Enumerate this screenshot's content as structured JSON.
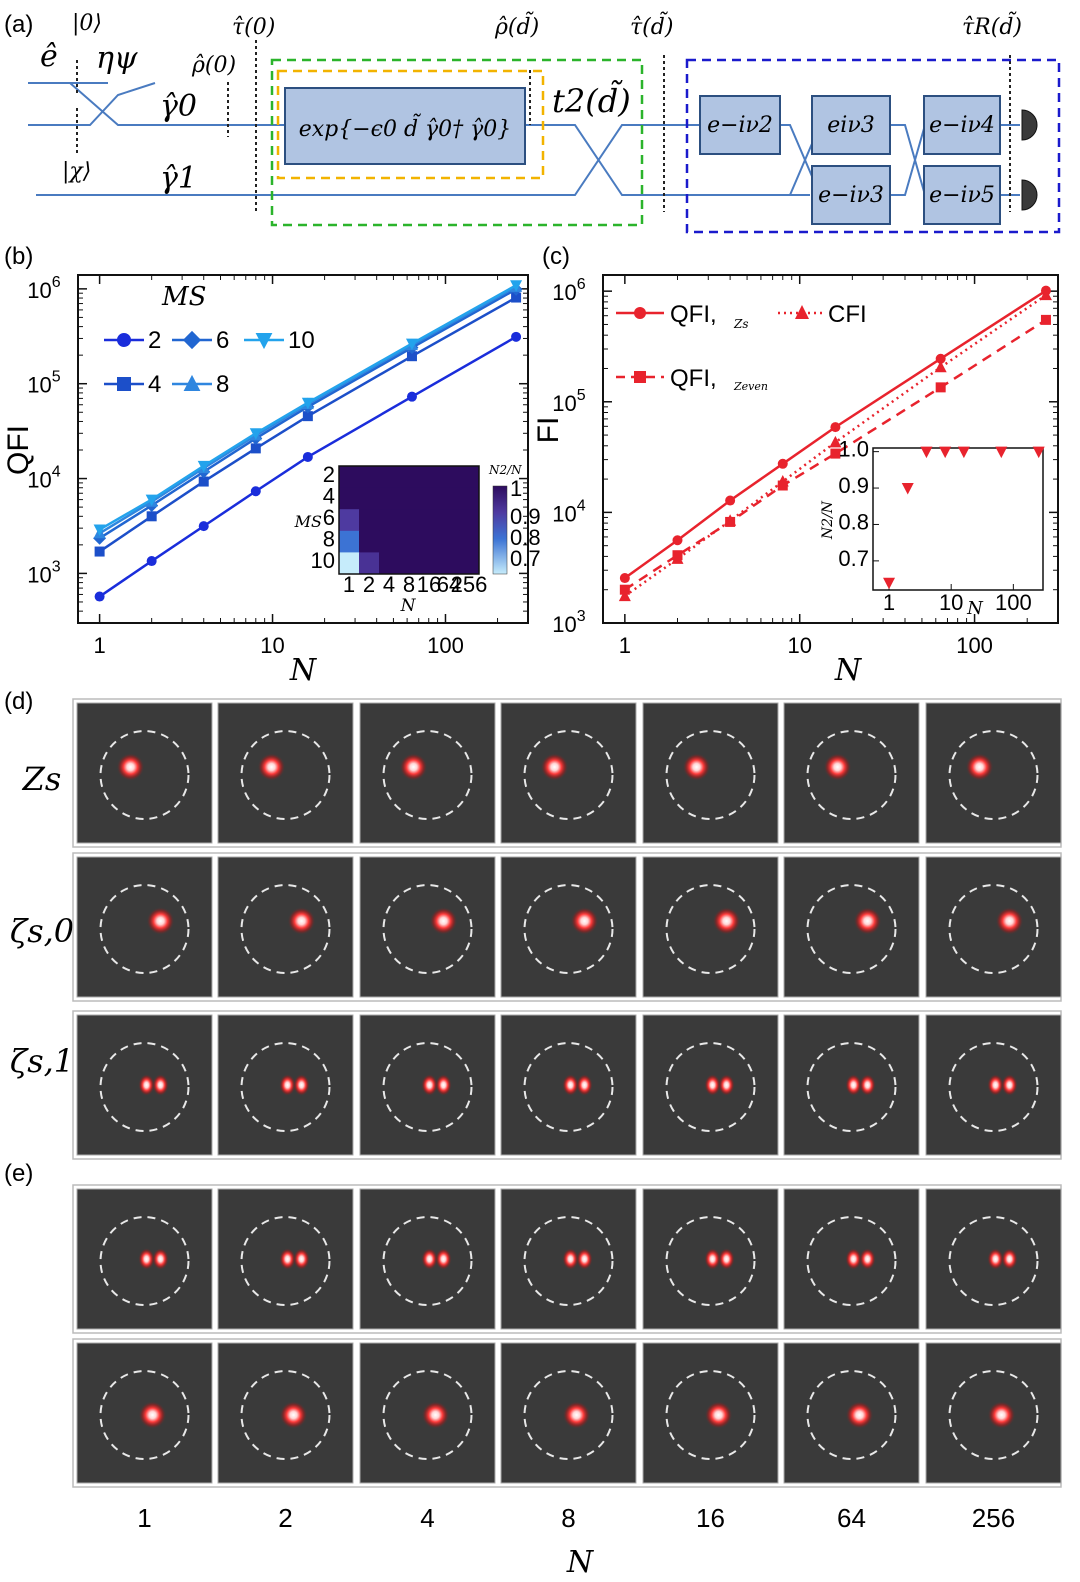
{
  "panels": {
    "a": "(a)",
    "b": "(b)",
    "c": "(c)",
    "d": "(d)",
    "e": "(e)"
  },
  "circuit": {
    "ket0": "|0⟩",
    "ketchi": "|χ⟩",
    "e_hat": "ê",
    "eta": "ηψ",
    "gamma0": "γ̂0",
    "gamma1": "γ̂1",
    "rho0": "ρ̂(0)",
    "tau0": "τ̂(0)",
    "rhod": "ρ̂(d̃)",
    "taud": "τ̂(d̃)",
    "taurd": "τ̂R(d̃)",
    "t2": "t2(d̃)",
    "exp_box": "exp{−ϵ0 d̃ γ̂0† γ̂0}",
    "phase_boxes": [
      "e−iν2",
      "eiν3",
      "e−iν3",
      "e−iν4",
      "e−iν5"
    ],
    "colors": {
      "wire": "#4a7bc0",
      "box_fill": "#b0c4e2",
      "box_stroke": "#2c4f80",
      "green": "#2bb42b",
      "orange": "#f2b300",
      "blue": "#1a1acc",
      "detector": "#3a3a3a"
    }
  },
  "chart_data": [
    {
      "id": "b",
      "type": "line",
      "ylabel": "QFI",
      "xlabel": "N",
      "xscale": "log",
      "yscale": "log",
      "xlim": [
        0.75,
        300
      ],
      "ylim": [
        300,
        1400000
      ],
      "xticks": [
        "1",
        "10",
        "100"
      ],
      "yticks": [
        "10^3",
        "10^4",
        "10^5",
        "10^6"
      ],
      "legend_title": "MS",
      "legend_placement": "top-left",
      "x": [
        1,
        2,
        4,
        8,
        16,
        64,
        256
      ],
      "series": [
        {
          "name": "2",
          "marker": "circle",
          "color": "#1a2ddb",
          "values": [
            570,
            1350,
            3150,
            7350,
            16900,
            73000,
            312000
          ]
        },
        {
          "name": "4",
          "marker": "square",
          "color": "#1c4fc9",
          "values": [
            1700,
            4000,
            9300,
            20800,
            45500,
            195000,
            810000
          ]
        },
        {
          "name": "6",
          "marker": "diamond",
          "color": "#2166d1",
          "values": [
            2350,
            5200,
            11800,
            26500,
            57000,
            240000,
            990000
          ]
        },
        {
          "name": "8",
          "marker": "triangle-up",
          "color": "#2f86df",
          "values": [
            2650,
            5700,
            12900,
            28500,
            61000,
            255000,
            1050000
          ]
        },
        {
          "name": "10",
          "marker": "triangle-down",
          "color": "#23a3ec",
          "values": [
            2900,
            6000,
            13600,
            30000,
            63000,
            265000,
            1090000
          ]
        }
      ],
      "inset": {
        "type": "heatmap",
        "xlabel": "N",
        "ylabel": "MS",
        "colorbar_label": "N2/N",
        "colorbar_ticks": [
          "1",
          "0.9",
          "0.8",
          "0.7"
        ],
        "x_categories": [
          "1",
          "2",
          "4",
          "8",
          "16",
          "64",
          "256"
        ],
        "y_categories": [
          "2",
          "4",
          "6",
          "8",
          "10"
        ],
        "values": [
          [
            1,
            1,
            1,
            1,
            1,
            1,
            1
          ],
          [
            1,
            1,
            1,
            1,
            1,
            1,
            1
          ],
          [
            0.88,
            1,
            1,
            1,
            1,
            1,
            1
          ],
          [
            0.76,
            1,
            1,
            1,
            1,
            1,
            1
          ],
          [
            0.64,
            0.9,
            1,
            1,
            1,
            1,
            1
          ]
        ]
      }
    },
    {
      "id": "c",
      "type": "line",
      "ylabel": "FI",
      "xlabel": "N",
      "xscale": "log",
      "yscale": "log",
      "xlim": [
        0.75,
        300
      ],
      "ylim": [
        1000,
        1400000
      ],
      "xticks": [
        "1",
        "10",
        "100"
      ],
      "yticks": [
        "10^3",
        "10^4",
        "10^5",
        "10^6"
      ],
      "legend_placement": "top-left",
      "x": [
        1,
        2,
        4,
        8,
        16,
        64,
        256
      ],
      "series": [
        {
          "name": "QFI,",
          "sub": "Zs",
          "marker": "circle",
          "dash": "solid",
          "color": "#e8232d",
          "values": [
            2550,
            5600,
            12800,
            27500,
            59000,
            245000,
            1010000
          ]
        },
        {
          "name": "CFI",
          "sub": "",
          "marker": "triangle-up",
          "dash": "dotted",
          "color": "#e8232d",
          "values": [
            1750,
            3800,
            8400,
            19000,
            43000,
            205000,
            920000
          ]
        },
        {
          "name": "QFI,",
          "sub": "Zeven",
          "marker": "square",
          "dash": "dashed",
          "color": "#e8232d",
          "values": [
            2000,
            4100,
            8200,
            17500,
            34000,
            135000,
            550000
          ]
        }
      ],
      "inset": {
        "type": "scatter",
        "xlabel": "N",
        "ylabel": "N2/N",
        "xscale": "log",
        "xticks": [
          "1",
          "10",
          "100"
        ],
        "yticks": [
          "0.7",
          "0.8",
          "0.9",
          "1.0"
        ],
        "ylim": [
          0.62,
          1.01
        ],
        "x": [
          1,
          2,
          4,
          8,
          16,
          64,
          256
        ],
        "values": [
          0.64,
          0.9,
          1.0,
          1.0,
          1.0,
          1.0,
          1.0
        ],
        "marker": "triangle-down",
        "color": "#e8232d"
      }
    }
  ],
  "images": {
    "row_labels": [
      "Zs",
      "ζs,0",
      "ζs,1"
    ],
    "columns_N": [
      "1",
      "2",
      "4",
      "8",
      "16",
      "64",
      "256"
    ],
    "xlabel": "N",
    "rows": [
      {
        "group": "d",
        "label": "Zs",
        "spots": "single-left"
      },
      {
        "group": "d",
        "label": "ζs,0",
        "spots": "single-right"
      },
      {
        "group": "d",
        "label": "ζs,1",
        "spots": "double"
      },
      {
        "group": "e",
        "label": "",
        "spots": "double"
      },
      {
        "group": "e",
        "label": "",
        "spots": "single-center"
      }
    ]
  }
}
